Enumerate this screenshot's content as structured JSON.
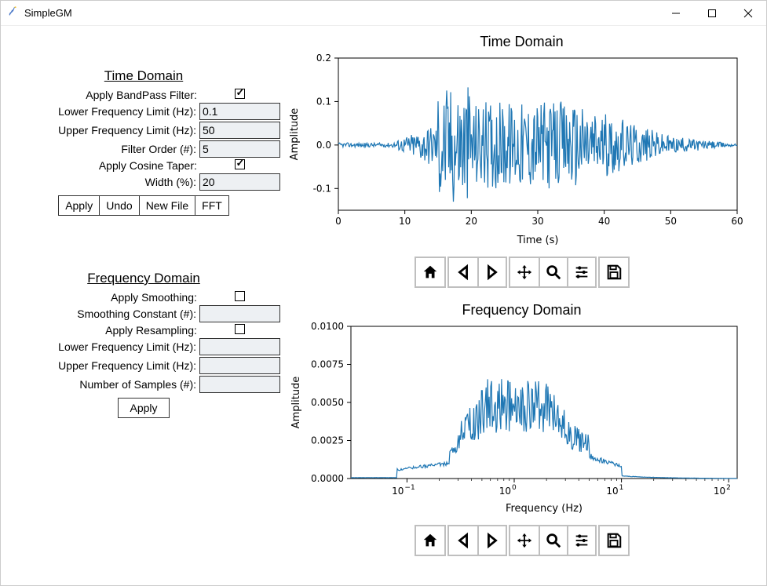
{
  "window": {
    "title": "SimpleGM"
  },
  "time_panel": {
    "title": "Time Domain",
    "bandpass_label": "Apply BandPass Filter:",
    "bandpass_checked": true,
    "low_freq_label": "Lower Frequency Limit (Hz):",
    "low_freq_value": "0.1",
    "up_freq_label": "Upper Frequency Limit (Hz):",
    "up_freq_value": "50",
    "order_label": "Filter Order (#):",
    "order_value": "5",
    "taper_label": "Apply Cosine Taper:",
    "taper_checked": true,
    "width_label": "Width (%):",
    "width_value": "20",
    "buttons": {
      "apply": "Apply",
      "undo": "Undo",
      "newfile": "New File",
      "fft": "FFT"
    }
  },
  "freq_panel": {
    "title": "Frequency Domain",
    "smooth_label": "Apply Smoothing:",
    "smooth_checked": false,
    "smooth_const_label": "Smoothing Constant (#):",
    "smooth_const_value": "",
    "resample_label": "Apply Resampling:",
    "resample_checked": false,
    "low_freq_label": "Lower Frequency Limit (Hz):",
    "low_freq_value": "",
    "up_freq_label": "Upper Frequency Limit (Hz):",
    "up_freq_value": "",
    "nsamp_label": "Number of Samples (#):",
    "nsamp_value": "",
    "apply_label": "Apply"
  },
  "time_chart": {
    "type": "line",
    "title": "Time Domain",
    "xlabel": "Time (s)",
    "ylabel": "Amplitude",
    "xlim": [
      0,
      60
    ],
    "xtick_step": 10,
    "ylim": [
      -0.15,
      0.2
    ],
    "yticks": [
      -0.1,
      0.0,
      0.1,
      0.2
    ],
    "line_color": "#1f77b4",
    "background": "#ffffff",
    "axis_fontsize": 12,
    "label_fontsize": 13,
    "title_fontsize": 18,
    "border_color": "#000000"
  },
  "freq_chart": {
    "type": "line",
    "title": "Frequency Domain",
    "xlabel": "Frequency (Hz)",
    "ylabel": "Amplitude",
    "xscale": "log",
    "xlim": [
      0.03,
      120
    ],
    "xticks_log": [
      -1,
      0,
      1,
      2
    ],
    "ylim": [
      0.0,
      0.01
    ],
    "yticks": [
      0.0,
      0.0025,
      0.005,
      0.0075,
      0.01
    ],
    "ytick_labels": [
      "0.0000",
      "0.0025",
      "0.0050",
      "0.0075",
      "0.0100"
    ],
    "line_color": "#1f77b4",
    "background": "#ffffff",
    "axis_fontsize": 12,
    "label_fontsize": 13,
    "title_fontsize": 18,
    "border_color": "#000000"
  },
  "mpl_toolbar_tooltips": {
    "home": "Reset view",
    "back": "Back",
    "forward": "Forward",
    "pan": "Pan",
    "zoom": "Zoom",
    "config": "Configure subplots",
    "save": "Save"
  }
}
